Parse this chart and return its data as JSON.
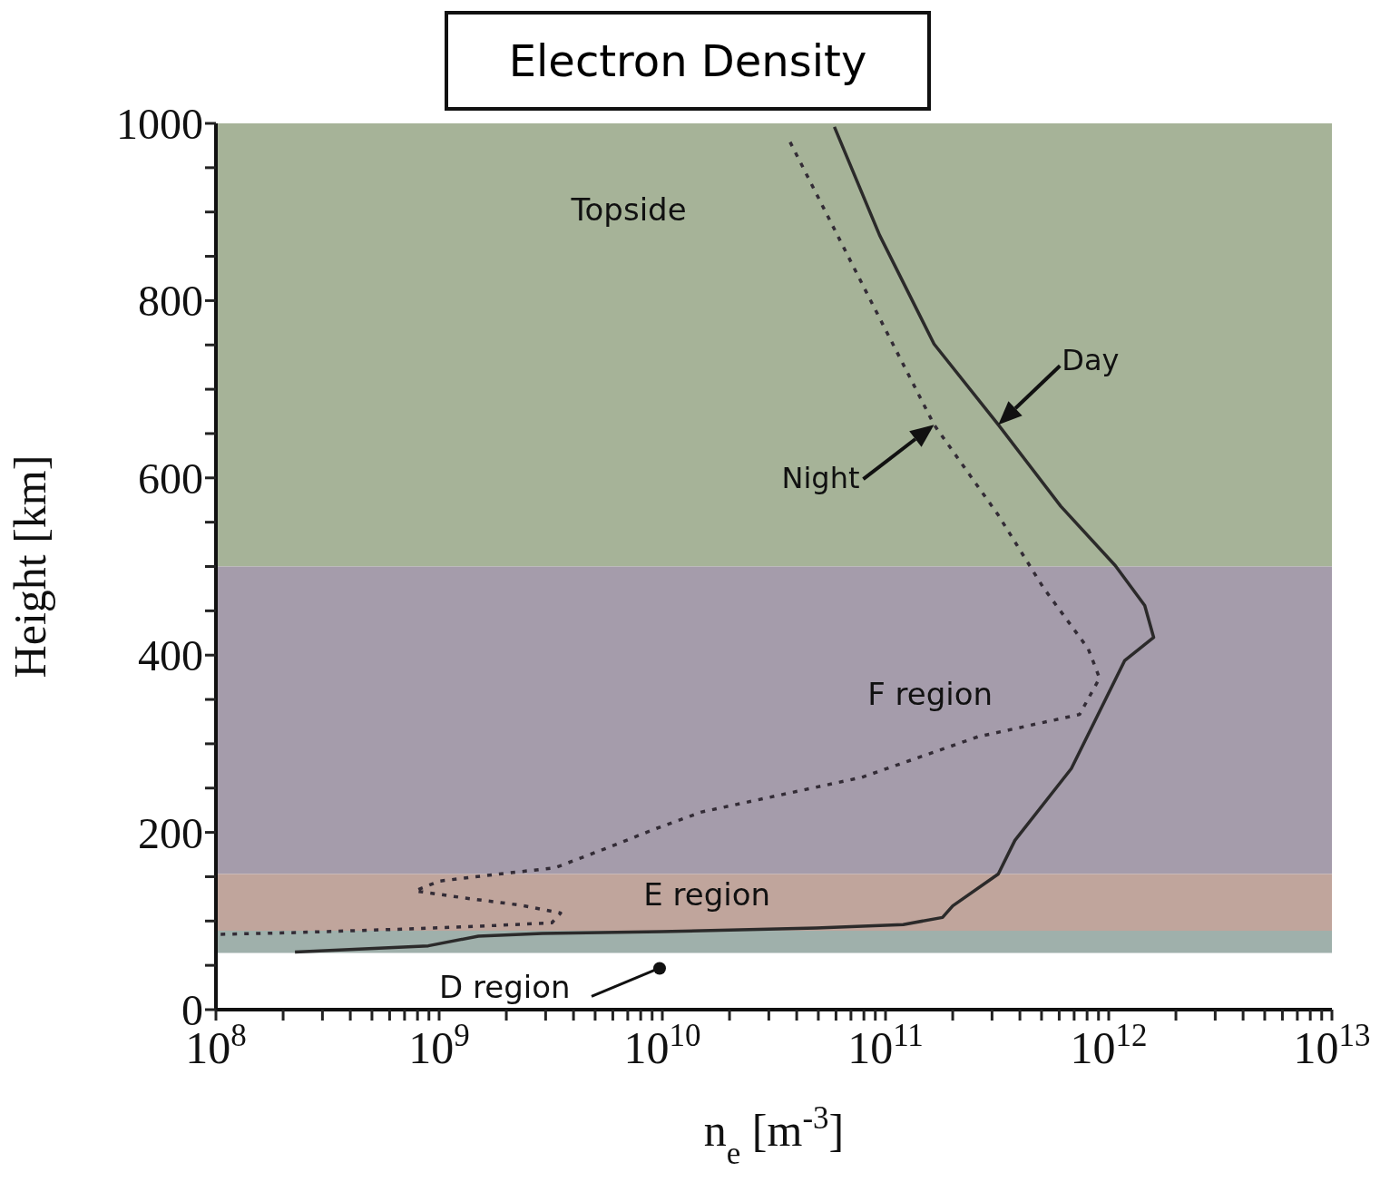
{
  "chart_data": {
    "type": "line",
    "title": "Electron Density",
    "xlabel": "n$_{e}$ [m$^{-3}$]",
    "ylabel": "Height [km]",
    "log": "x",
    "xlim": [
      100000000,
      10000000000000
    ],
    "ylim": [
      0,
      1000
    ],
    "xticks": [
      {
        "value": 100000000,
        "label": "10$^{8}$"
      },
      {
        "value": 200000000,
        "label": null
      },
      {
        "value": 300000000,
        "label": null
      },
      {
        "value": 400000000,
        "label": null
      },
      {
        "value": 500000000,
        "label": null
      },
      {
        "value": 600000000,
        "label": null
      },
      {
        "value": 700000000,
        "label": null
      },
      {
        "value": 800000000,
        "label": null
      },
      {
        "value": 900000000,
        "label": null
      },
      {
        "value": 1000000000,
        "label": "10$^{9}$"
      },
      {
        "value": 2000000000,
        "label": null
      },
      {
        "value": 3000000000,
        "label": null
      },
      {
        "value": 4000000000,
        "label": null
      },
      {
        "value": 5000000000,
        "label": null
      },
      {
        "value": 6000000000,
        "label": null
      },
      {
        "value": 7000000000,
        "label": null
      },
      {
        "value": 8000000000,
        "label": null
      },
      {
        "value": 9000000000,
        "label": null
      },
      {
        "value": 10000000000,
        "label": "10$^{10}$"
      },
      {
        "value": 20000000000,
        "label": null
      },
      {
        "value": 30000000000,
        "label": null
      },
      {
        "value": 40000000000,
        "label": null
      },
      {
        "value": 50000000000,
        "label": null
      },
      {
        "value": 60000000000,
        "label": null
      },
      {
        "value": 70000000000,
        "label": null
      },
      {
        "value": 80000000000,
        "label": null
      },
      {
        "value": 90000000000,
        "label": null
      },
      {
        "value": 100000000000,
        "label": "10$^{11}$"
      },
      {
        "value": 200000000000,
        "label": null
      },
      {
        "value": 300000000000,
        "label": null
      },
      {
        "value": 400000000000,
        "label": null
      },
      {
        "value": 500000000000,
        "label": null
      },
      {
        "value": 600000000000,
        "label": null
      },
      {
        "value": 700000000000,
        "label": null
      },
      {
        "value": 800000000000,
        "label": null
      },
      {
        "value": 900000000000,
        "label": null
      },
      {
        "value": 1000000000000,
        "label": "10$^{12}$"
      },
      {
        "value": 2000000000000,
        "label": null
      },
      {
        "value": 3000000000000,
        "label": null
      },
      {
        "value": 4000000000000,
        "label": null
      },
      {
        "value": 5000000000000,
        "label": null
      },
      {
        "value": 6000000000000,
        "label": null
      },
      {
        "value": 7000000000000,
        "label": null
      },
      {
        "value": 8000000000000,
        "label": null
      },
      {
        "value": 9000000000000,
        "label": null
      },
      {
        "value": 10000000000000,
        "label": "10$^{13}$"
      }
    ],
    "yticks": [
      0,
      {
        "value": 50,
        "label": null
      },
      {
        "value": 100,
        "label": null
      },
      {
        "value": 150,
        "label": null
      },
      200,
      {
        "value": 250,
        "label": null
      },
      {
        "value": 300,
        "label": null
      },
      {
        "value": 350,
        "label": null
      },
      400,
      {
        "value": 450,
        "label": null
      },
      {
        "value": 500,
        "label": null
      },
      {
        "value": 550,
        "label": null
      },
      600,
      {
        "value": 650,
        "label": null
      },
      {
        "value": 700,
        "label": null
      },
      {
        "value": 750,
        "label": null
      },
      800,
      {
        "value": 850,
        "label": null
      },
      {
        "value": 900,
        "label": null
      },
      {
        "value": 950,
        "label": null
      },
      1000
    ],
    "bands": [
      {
        "axis": "y",
        "from": 500,
        "to": 1000,
        "label": "Topside",
        "color": "#a6b398"
      },
      {
        "axis": "y",
        "from": 153,
        "to": 500,
        "label": "F region",
        "color": "#a59cab"
      },
      {
        "axis": "y",
        "from": 89,
        "to": 153,
        "label": "E region",
        "color": "#c0a59c"
      },
      {
        "axis": "y",
        "from": 64,
        "to": 89,
        "label": "D region",
        "color": "#9fb0ab"
      }
    ],
    "series": [
      {
        "color": "#2b2a2a",
        "line_style": "solid",
        "x": [
          226000000,
          894000000,
          1500000000,
          2900000000,
          9900000000,
          49000000000,
          120000000000,
          180000000000,
          200000000000,
          320000000000,
          380000000000,
          680000000000,
          1180000000000,
          1590000000000,
          1450000000000,
          1070000000000,
          610000000000,
          320000000000,
          165000000000,
          94000000000,
          59000000000
        ],
        "values": [
          65,
          72,
          83,
          86,
          88,
          92,
          96,
          104,
          117,
          153,
          191,
          272,
          394,
          420,
          456,
          501,
          568,
          660,
          751,
          874,
          996
        ]
      },
      {
        "color": "#332c36",
        "line_style": "dotted",
        "x": [
          105000000,
          230000000,
          720000000,
          1800000000,
          3200000000,
          3500000000,
          2300000000,
          1300000000,
          780000000,
          1000000000,
          1850000000,
          3300000000,
          5600000000,
          9300000000,
          15000000000,
          26000000000,
          78000000000,
          260000000000,
          740000000000,
          910000000000,
          810000000000,
          510000000000,
          320000000000,
          165000000000,
          85000000000,
          37000000000
        ],
        "values": [
          85,
          87,
          91,
          95,
          98,
          109,
          118,
          126,
          134,
          145,
          153,
          160,
          182,
          204,
          223,
          236,
          262,
          308,
          333,
          374,
          407,
          476,
          558,
          660,
          802,
          981
        ]
      }
    ],
    "annotations": [
      {
        "text": "Day",
        "x": 320000000000,
        "y": 660
      },
      {
        "text": "Night",
        "x": 165000000000,
        "y": 660
      }
    ]
  }
}
